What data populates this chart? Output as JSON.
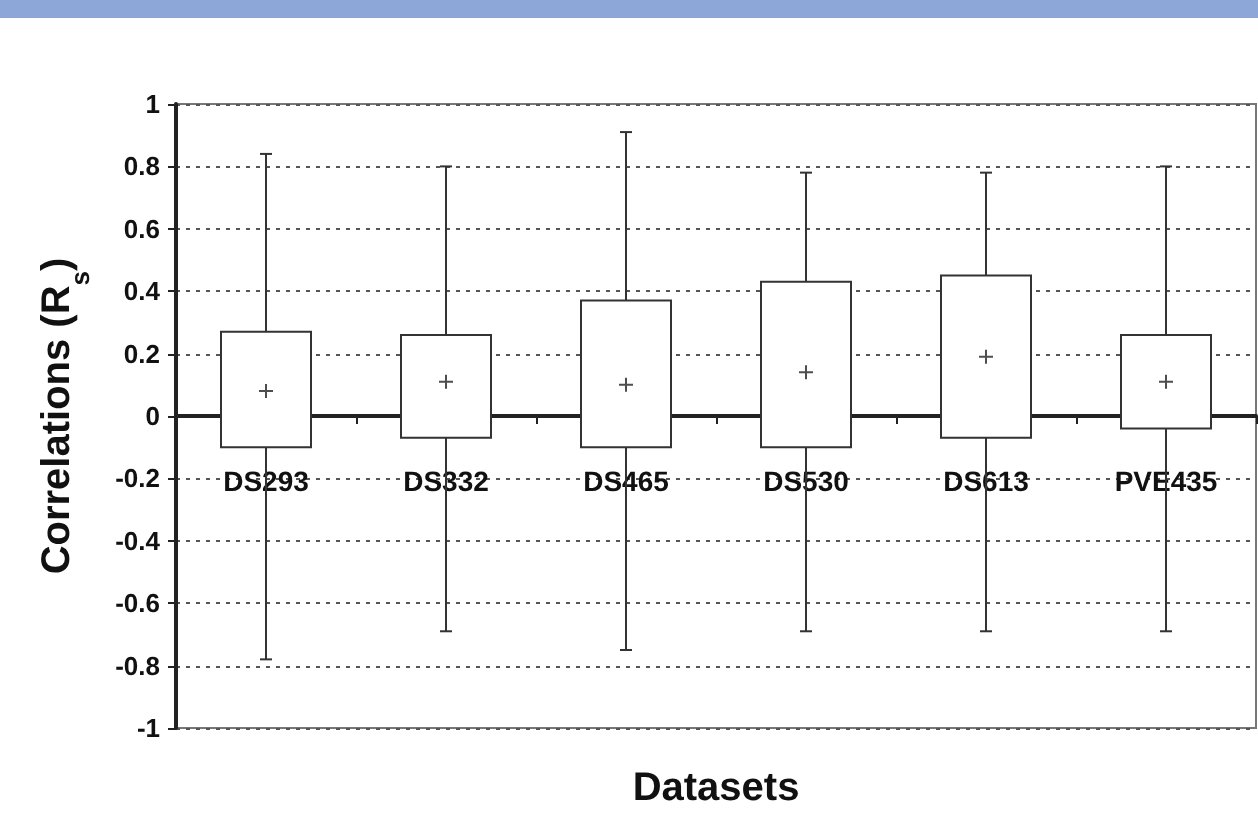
{
  "chart_data": {
    "type": "box",
    "xlabel": "Datasets",
    "ylabel": "Correlations (R$_{s}$)",
    "categories": [
      "DS293",
      "DS332",
      "DS465",
      "DS530",
      "DS613",
      "PVE435"
    ],
    "boxes": [
      {
        "low": -0.78,
        "q1": -0.1,
        "q3": 0.27,
        "high": 0.84,
        "mean": 0.08
      },
      {
        "low": -0.69,
        "q1": -0.07,
        "q3": 0.26,
        "high": 0.8,
        "mean": 0.11
      },
      {
        "low": -0.75,
        "q1": -0.1,
        "q3": 0.37,
        "high": 0.91,
        "mean": 0.1
      },
      {
        "low": -0.69,
        "q1": -0.1,
        "q3": 0.43,
        "high": 0.78,
        "mean": 0.14
      },
      {
        "low": -0.69,
        "q1": -0.07,
        "q3": 0.45,
        "high": 0.78,
        "mean": 0.19
      },
      {
        "low": -0.69,
        "q1": -0.04,
        "q3": 0.26,
        "high": 0.8,
        "mean": 0.11
      }
    ],
    "ylim": [
      -1,
      1
    ],
    "yticks": [
      -1,
      -0.8,
      -0.6,
      -0.4,
      -0.2,
      0,
      0.2,
      0.4,
      0.6,
      0.8,
      1
    ],
    "grid": "y"
  }
}
